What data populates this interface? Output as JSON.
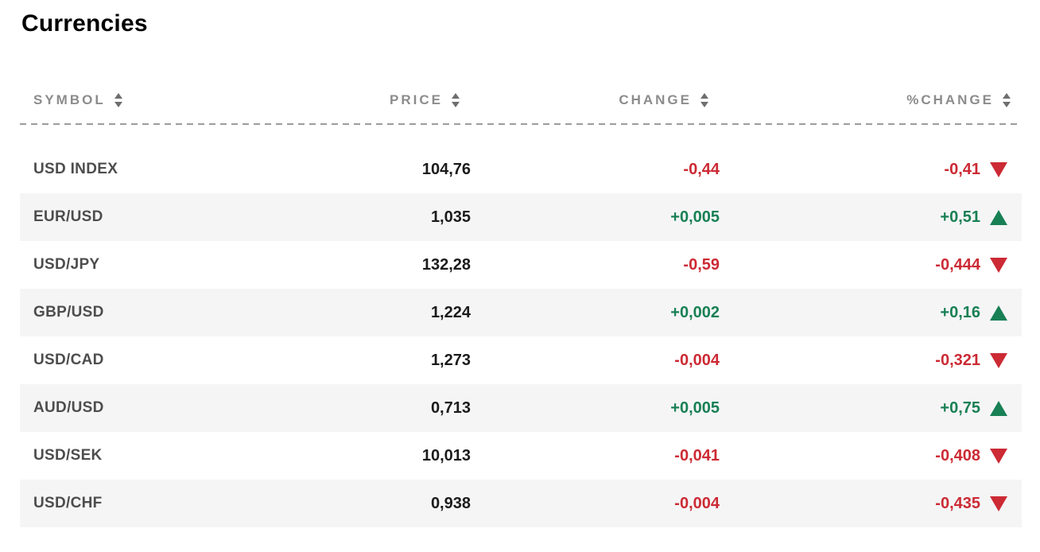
{
  "title": "Currencies",
  "colors": {
    "negative": "#cc2a34",
    "positive": "#188054",
    "row_alt_background": "#f5f5f6",
    "header_text": "#8c8c8c",
    "symbol_text": "#4d4d4d",
    "value_text": "#1b1b1b",
    "dashed_divider": "#9c9c9c"
  },
  "table": {
    "columns": [
      {
        "label": "SYMBOL",
        "sort_icon": "sort-arrows"
      },
      {
        "label": "PRICE",
        "sort_icon": "sort-arrows"
      },
      {
        "label": "CHANGE",
        "sort_icon": "sort-arrows"
      },
      {
        "label": "%CHANGE",
        "sort_icon": "sort-arrows"
      }
    ],
    "rows": [
      {
        "symbol": "USD INDEX",
        "price": "104,76",
        "change": "-0,44",
        "pct_change": "-0,41",
        "trend": "down"
      },
      {
        "symbol": "EUR/USD",
        "price": "1,035",
        "change": "+0,005",
        "pct_change": "+0,51",
        "trend": "up"
      },
      {
        "symbol": "USD/JPY",
        "price": "132,28",
        "change": "-0,59",
        "pct_change": "-0,444",
        "trend": "down"
      },
      {
        "symbol": "GBP/USD",
        "price": "1,224",
        "change": "+0,002",
        "pct_change": "+0,16",
        "trend": "up"
      },
      {
        "symbol": "USD/CAD",
        "price": "1,273",
        "change": "-0,004",
        "pct_change": "-0,321",
        "trend": "down"
      },
      {
        "symbol": "AUD/USD",
        "price": "0,713",
        "change": "+0,005",
        "pct_change": "+0,75",
        "trend": "up"
      },
      {
        "symbol": "USD/SEK",
        "price": "10,013",
        "change": "-0,041",
        "pct_change": "-0,408",
        "trend": "down"
      },
      {
        "symbol": "USD/CHF",
        "price": "0,938",
        "change": "-0,004",
        "pct_change": "-0,435",
        "trend": "down"
      }
    ]
  }
}
